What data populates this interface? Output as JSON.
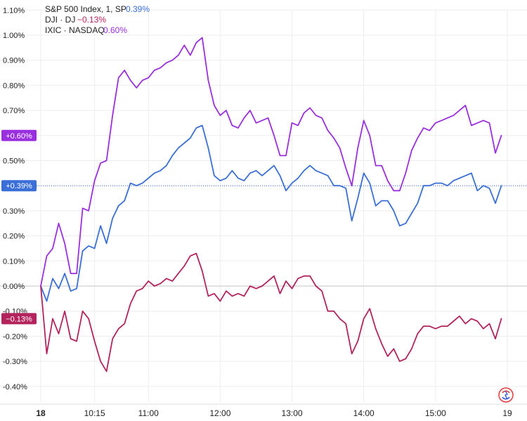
{
  "chart_data": {
    "type": "line",
    "title": "",
    "xlabel": "",
    "ylabel": "",
    "ylim": [
      -0.43,
      1.12
    ],
    "y_ticks": [
      -0.4,
      -0.3,
      -0.2,
      -0.1,
      0.0,
      0.1,
      0.2,
      0.3,
      0.4,
      0.5,
      0.6,
      0.7,
      0.8,
      0.9,
      1.0,
      1.1
    ],
    "y_tick_labels": [
      "-0.40%",
      "-0.30%",
      "-0.20%",
      "-0.10%",
      "0.00%",
      "0.10%",
      "0.20%",
      "0.30%",
      "0.40%",
      "0.50%",
      "0.60%",
      "0.70%",
      "0.80%",
      "0.90%",
      "1.00%",
      "1.10%"
    ],
    "x_ticks": [
      "09:30",
      "10:15",
      "11:00",
      "12:00",
      "13:00",
      "14:00",
      "15:00",
      "16:00"
    ],
    "x_tick_labels": [
      "18",
      "10:15",
      "11:00",
      "12:00",
      "13:00",
      "14:00",
      "15:00",
      "19"
    ],
    "x_range": [
      "09:30",
      "16:00"
    ],
    "grid": true,
    "legend_position": "top-left",
    "series": [
      {
        "name": "S&P 500 Index, 1, SP",
        "legend_value": "0.39%",
        "badge": "+0.39%",
        "color": "#3b6fd8",
        "points": [
          [
            "09:30",
            0.0
          ],
          [
            "09:35",
            -0.06
          ],
          [
            "09:40",
            0.03
          ],
          [
            "09:45",
            -0.01
          ],
          [
            "09:50",
            0.05
          ],
          [
            "09:55",
            -0.02
          ],
          [
            "10:00",
            -0.01
          ],
          [
            "10:05",
            0.14
          ],
          [
            "10:10",
            0.16
          ],
          [
            "10:15",
            0.15
          ],
          [
            "10:20",
            0.24
          ],
          [
            "10:25",
            0.17
          ],
          [
            "10:30",
            0.27
          ],
          [
            "10:35",
            0.32
          ],
          [
            "10:40",
            0.34
          ],
          [
            "10:45",
            0.41
          ],
          [
            "10:50",
            0.4
          ],
          [
            "10:55",
            0.41
          ],
          [
            "11:00",
            0.43
          ],
          [
            "11:05",
            0.45
          ],
          [
            "11:10",
            0.46
          ],
          [
            "11:15",
            0.48
          ],
          [
            "11:20",
            0.52
          ],
          [
            "11:25",
            0.55
          ],
          [
            "11:30",
            0.57
          ],
          [
            "11:35",
            0.59
          ],
          [
            "11:40",
            0.63
          ],
          [
            "11:45",
            0.64
          ],
          [
            "11:50",
            0.55
          ],
          [
            "11:55",
            0.44
          ],
          [
            "12:00",
            0.42
          ],
          [
            "12:05",
            0.43
          ],
          [
            "12:10",
            0.46
          ],
          [
            "12:15",
            0.43
          ],
          [
            "12:20",
            0.42
          ],
          [
            "12:25",
            0.45
          ],
          [
            "12:30",
            0.46
          ],
          [
            "12:35",
            0.44
          ],
          [
            "12:40",
            0.46
          ],
          [
            "12:45",
            0.48
          ],
          [
            "12:50",
            0.44
          ],
          [
            "12:55",
            0.38
          ],
          [
            "13:00",
            0.41
          ],
          [
            "13:05",
            0.43
          ],
          [
            "13:10",
            0.46
          ],
          [
            "13:15",
            0.48
          ],
          [
            "13:20",
            0.46
          ],
          [
            "13:25",
            0.45
          ],
          [
            "13:30",
            0.44
          ],
          [
            "13:35",
            0.4
          ],
          [
            "13:40",
            0.4
          ],
          [
            "13:45",
            0.39
          ],
          [
            "13:50",
            0.26
          ],
          [
            "13:55",
            0.35
          ],
          [
            "14:00",
            0.45
          ],
          [
            "14:05",
            0.41
          ],
          [
            "14:10",
            0.32
          ],
          [
            "14:15",
            0.34
          ],
          [
            "14:20",
            0.34
          ],
          [
            "14:25",
            0.3
          ],
          [
            "14:30",
            0.24
          ],
          [
            "14:35",
            0.25
          ],
          [
            "14:40",
            0.29
          ],
          [
            "14:45",
            0.33
          ],
          [
            "14:50",
            0.4
          ],
          [
            "14:55",
            0.4
          ],
          [
            "15:00",
            0.41
          ],
          [
            "15:05",
            0.41
          ],
          [
            "15:10",
            0.4
          ],
          [
            "15:15",
            0.42
          ],
          [
            "15:20",
            0.43
          ],
          [
            "15:25",
            0.44
          ],
          [
            "15:30",
            0.45
          ],
          [
            "15:35",
            0.38
          ],
          [
            "15:40",
            0.4
          ],
          [
            "15:45",
            0.39
          ],
          [
            "15:50",
            0.33
          ],
          [
            "15:55",
            0.4
          ]
        ]
      },
      {
        "name": "DJI · DJ",
        "legend_value": "−0.13%",
        "badge": "−0.13%",
        "color": "#b3245d",
        "points": [
          [
            "09:30",
            0.0
          ],
          [
            "09:35",
            -0.27
          ],
          [
            "09:40",
            -0.13
          ],
          [
            "09:45",
            -0.19
          ],
          [
            "09:50",
            -0.1
          ],
          [
            "09:55",
            -0.21
          ],
          [
            "10:00",
            -0.22
          ],
          [
            "10:05",
            -0.1
          ],
          [
            "10:10",
            -0.13
          ],
          [
            "10:15",
            -0.22
          ],
          [
            "10:20",
            -0.3
          ],
          [
            "10:25",
            -0.34
          ],
          [
            "10:30",
            -0.21
          ],
          [
            "10:35",
            -0.17
          ],
          [
            "10:40",
            -0.15
          ],
          [
            "10:45",
            -0.07
          ],
          [
            "10:50",
            -0.02
          ],
          [
            "10:55",
            -0.01
          ],
          [
            "11:00",
            0.02
          ],
          [
            "11:05",
            0.0
          ],
          [
            "11:10",
            0.01
          ],
          [
            "11:15",
            0.03
          ],
          [
            "11:20",
            0.02
          ],
          [
            "11:25",
            0.05
          ],
          [
            "11:30",
            0.08
          ],
          [
            "11:35",
            0.12
          ],
          [
            "11:40",
            0.13
          ],
          [
            "11:45",
            0.06
          ],
          [
            "11:50",
            -0.04
          ],
          [
            "11:55",
            -0.03
          ],
          [
            "12:00",
            -0.06
          ],
          [
            "12:05",
            -0.02
          ],
          [
            "12:10",
            -0.04
          ],
          [
            "12:15",
            -0.03
          ],
          [
            "12:20",
            -0.04
          ],
          [
            "12:25",
            0.0
          ],
          [
            "12:30",
            -0.01
          ],
          [
            "12:35",
            0.0
          ],
          [
            "12:40",
            0.02
          ],
          [
            "12:45",
            0.04
          ],
          [
            "12:50",
            -0.03
          ],
          [
            "12:55",
            0.02
          ],
          [
            "13:00",
            -0.01
          ],
          [
            "13:05",
            0.03
          ],
          [
            "13:10",
            0.04
          ],
          [
            "13:15",
            0.04
          ],
          [
            "13:20",
            0.0
          ],
          [
            "13:25",
            -0.02
          ],
          [
            "13:30",
            -0.1
          ],
          [
            "13:35",
            -0.1
          ],
          [
            "13:40",
            -0.13
          ],
          [
            "13:45",
            -0.15
          ],
          [
            "13:50",
            -0.27
          ],
          [
            "13:55",
            -0.22
          ],
          [
            "14:00",
            -0.13
          ],
          [
            "14:05",
            -0.09
          ],
          [
            "14:10",
            -0.17
          ],
          [
            "14:15",
            -0.23
          ],
          [
            "14:20",
            -0.28
          ],
          [
            "14:25",
            -0.25
          ],
          [
            "14:30",
            -0.3
          ],
          [
            "14:35",
            -0.29
          ],
          [
            "14:40",
            -0.25
          ],
          [
            "14:45",
            -0.19
          ],
          [
            "14:50",
            -0.16
          ],
          [
            "14:55",
            -0.16
          ],
          [
            "15:00",
            -0.17
          ],
          [
            "15:05",
            -0.16
          ],
          [
            "15:10",
            -0.16
          ],
          [
            "15:15",
            -0.14
          ],
          [
            "15:20",
            -0.12
          ],
          [
            "15:25",
            -0.15
          ],
          [
            "15:30",
            -0.13
          ],
          [
            "15:35",
            -0.14
          ],
          [
            "15:40",
            -0.17
          ],
          [
            "15:45",
            -0.15
          ],
          [
            "15:50",
            -0.21
          ],
          [
            "15:55",
            -0.13
          ]
        ]
      },
      {
        "name": "IXIC · NASDAQ",
        "legend_value": "0.60%",
        "badge": "+0.60%",
        "color": "#9a2fe0",
        "points": [
          [
            "09:30",
            0.0
          ],
          [
            "09:35",
            0.12
          ],
          [
            "09:40",
            0.15
          ],
          [
            "09:45",
            0.25
          ],
          [
            "09:50",
            0.17
          ],
          [
            "09:55",
            0.05
          ],
          [
            "10:00",
            0.05
          ],
          [
            "10:05",
            0.31
          ],
          [
            "10:10",
            0.3
          ],
          [
            "10:15",
            0.42
          ],
          [
            "10:20",
            0.49
          ],
          [
            "10:25",
            0.5
          ],
          [
            "10:30",
            0.68
          ],
          [
            "10:35",
            0.83
          ],
          [
            "10:40",
            0.86
          ],
          [
            "10:45",
            0.82
          ],
          [
            "10:50",
            0.79
          ],
          [
            "10:55",
            0.82
          ],
          [
            "11:00",
            0.83
          ],
          [
            "11:05",
            0.86
          ],
          [
            "11:10",
            0.87
          ],
          [
            "11:15",
            0.89
          ],
          [
            "11:20",
            0.9
          ],
          [
            "11:25",
            0.92
          ],
          [
            "11:30",
            0.96
          ],
          [
            "11:35",
            0.92
          ],
          [
            "11:40",
            0.97
          ],
          [
            "11:45",
            0.99
          ],
          [
            "11:50",
            0.82
          ],
          [
            "11:55",
            0.72
          ],
          [
            "12:00",
            0.68
          ],
          [
            "12:05",
            0.7
          ],
          [
            "12:10",
            0.64
          ],
          [
            "12:15",
            0.63
          ],
          [
            "12:20",
            0.67
          ],
          [
            "12:25",
            0.7
          ],
          [
            "12:30",
            0.65
          ],
          [
            "12:35",
            0.66
          ],
          [
            "12:40",
            0.67
          ],
          [
            "12:45",
            0.6
          ],
          [
            "12:50",
            0.52
          ],
          [
            "12:55",
            0.52
          ],
          [
            "13:00",
            0.65
          ],
          [
            "13:05",
            0.64
          ],
          [
            "13:10",
            0.69
          ],
          [
            "13:15",
            0.71
          ],
          [
            "13:20",
            0.68
          ],
          [
            "13:25",
            0.67
          ],
          [
            "13:30",
            0.62
          ],
          [
            "13:35",
            0.59
          ],
          [
            "13:40",
            0.55
          ],
          [
            "13:45",
            0.47
          ],
          [
            "13:50",
            0.4
          ],
          [
            "13:55",
            0.55
          ],
          [
            "14:00",
            0.66
          ],
          [
            "14:05",
            0.6
          ],
          [
            "14:10",
            0.48
          ],
          [
            "14:15",
            0.48
          ],
          [
            "14:20",
            0.42
          ],
          [
            "14:25",
            0.38
          ],
          [
            "14:30",
            0.38
          ],
          [
            "14:35",
            0.45
          ],
          [
            "14:40",
            0.54
          ],
          [
            "14:45",
            0.59
          ],
          [
            "14:50",
            0.63
          ],
          [
            "14:55",
            0.62
          ],
          [
            "15:00",
            0.65
          ],
          [
            "15:05",
            0.66
          ],
          [
            "15:10",
            0.67
          ],
          [
            "15:15",
            0.68
          ],
          [
            "15:20",
            0.7
          ],
          [
            "15:25",
            0.72
          ],
          [
            "15:30",
            0.64
          ],
          [
            "15:35",
            0.65
          ],
          [
            "15:40",
            0.66
          ],
          [
            "15:45",
            0.65
          ],
          [
            "15:50",
            0.53
          ],
          [
            "15:55",
            0.6
          ]
        ]
      }
    ]
  },
  "colors": {
    "grid": "#ededed",
    "zero_line": "#cfcfcf",
    "axis_text": "#222222",
    "logo_red": "#e23b3b",
    "logo_blue": "#3b5bd8"
  },
  "icons": {
    "brand_logo": "broker-logo-icon"
  }
}
